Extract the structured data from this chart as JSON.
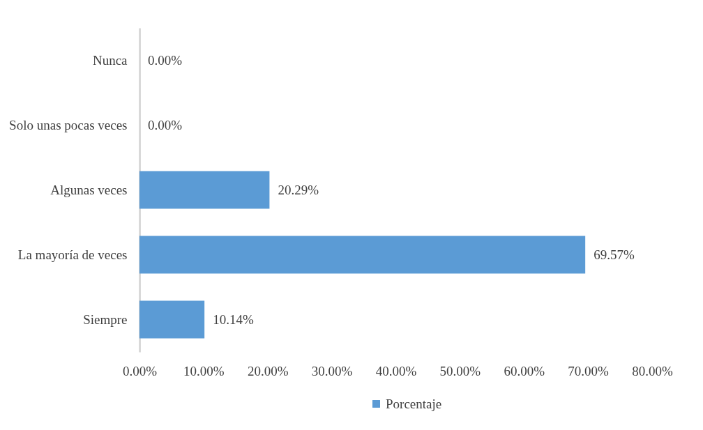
{
  "chart_data": {
    "type": "bar",
    "orientation": "horizontal",
    "categories": [
      "Nunca",
      "Solo unas pocas veces",
      "Algunas veces",
      "La mayoría de veces",
      "Siempre"
    ],
    "series": [
      {
        "name": "Porcentaje",
        "color": "#5b9bd5",
        "values": [
          0,
          0,
          20.29,
          69.57,
          10.14
        ],
        "value_labels": [
          "0.00%",
          "0.00%",
          "20.29%",
          "69.57%",
          "10.14%"
        ]
      }
    ],
    "xlim": [
      0,
      80
    ],
    "xticks": [
      {
        "value": 0,
        "label": "0.00%"
      },
      {
        "value": 10,
        "label": "10.00%"
      },
      {
        "value": 20,
        "label": "20.00%"
      },
      {
        "value": 30,
        "label": "30.00%"
      },
      {
        "value": 40,
        "label": "40.00%"
      },
      {
        "value": 50,
        "label": "50.00%"
      },
      {
        "value": 60,
        "label": "60.00%"
      },
      {
        "value": 70,
        "label": "70.00%"
      },
      {
        "value": 80,
        "label": "80.00%"
      }
    ],
    "grid": false,
    "legend": "bottom"
  }
}
